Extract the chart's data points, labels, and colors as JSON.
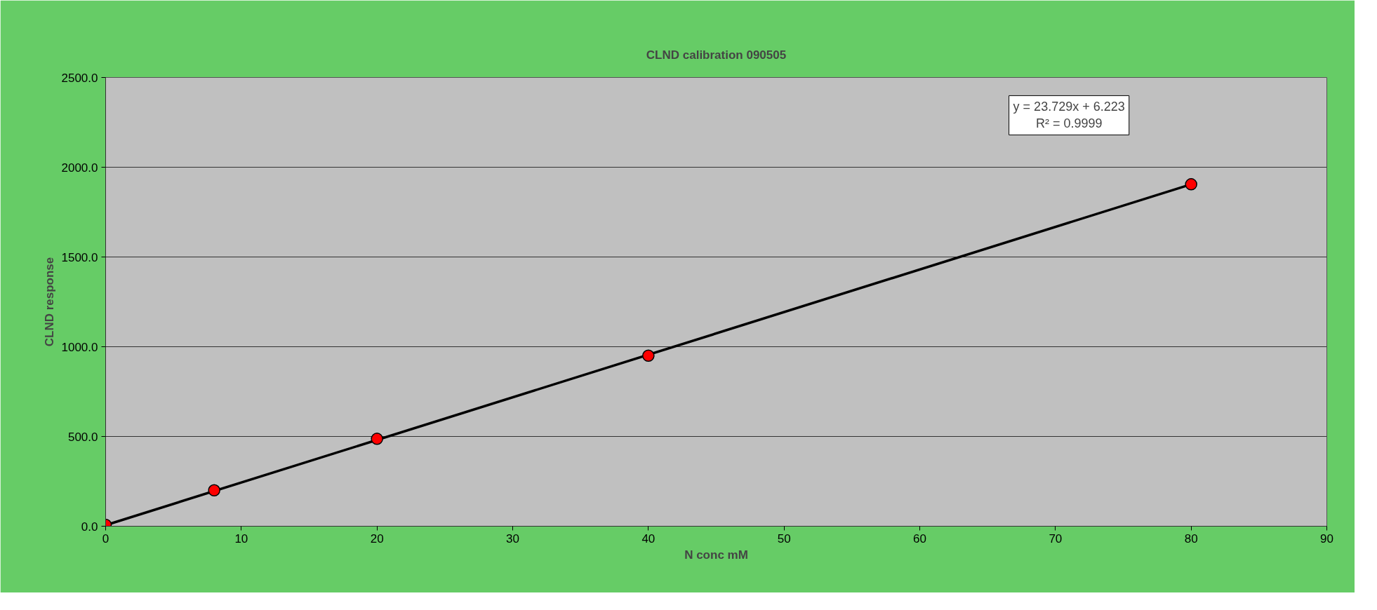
{
  "chart_data": {
    "type": "scatter",
    "title": "CLND calibration 090505",
    "xlabel": "N conc mM",
    "ylabel": "CLND response",
    "series": [
      {
        "type": "line",
        "color": "#000000",
        "x": [
          0,
          80
        ],
        "values": [
          6,
          1905
        ],
        "marker": "none",
        "line_style": "solid"
      },
      {
        "color": "#ff0000",
        "x": [
          0,
          8,
          20,
          40,
          80
        ],
        "values": [
          8,
          200,
          487,
          950,
          1905
        ],
        "marker": "circle"
      }
    ],
    "xlim": [
      0,
      90
    ],
    "xticks": [
      0,
      10,
      20,
      30,
      40,
      50,
      60,
      70,
      80,
      90
    ],
    "ylim": [
      0,
      2500
    ],
    "yticks": [
      {
        "value": 0,
        "label": "0.0"
      },
      {
        "value": 500,
        "label": "500.0"
      },
      {
        "value": 1000,
        "label": "1000.0"
      },
      {
        "value": 1500,
        "label": "1500.0"
      },
      {
        "value": 2000,
        "label": "2000.0"
      },
      {
        "value": 2500,
        "label": "2500.0"
      }
    ],
    "annotations": [
      "y = 23.729x + 6.223\nR² = 0.9999"
    ],
    "grid": "y"
  }
}
